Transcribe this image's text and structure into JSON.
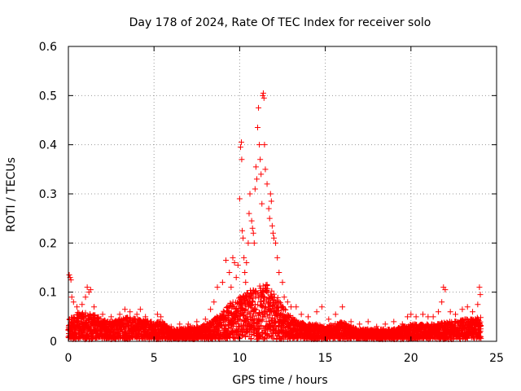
{
  "chart_data": {
    "type": "scatter",
    "title": "Day 178 of 2024, Rate Of TEC Index for receiver solo",
    "xlabel": "GPS time / hours",
    "ylabel": "ROTI / TECUs",
    "xlim": [
      0,
      25
    ],
    "ylim": [
      0,
      0.6
    ],
    "x_ticks": [
      0,
      5,
      10,
      15,
      20,
      25
    ],
    "y_ticks": [
      0,
      0.1,
      0.2,
      0.3,
      0.4,
      0.5,
      0.6
    ],
    "y_tick_labels": [
      "0",
      "0.1",
      "0.2",
      "0.3",
      "0.4",
      "0.5",
      "0.6"
    ],
    "grid": true,
    "marker": "+",
    "series": [
      {
        "name": "ROTI",
        "color": "#ff0000",
        "points": [
          [
            0.05,
            0.135
          ],
          [
            0.1,
            0.13
          ],
          [
            0.15,
            0.125
          ],
          [
            0.2,
            0.09
          ],
          [
            0.3,
            0.08
          ],
          [
            0.5,
            0.07
          ],
          [
            0.8,
            0.075
          ],
          [
            1.0,
            0.09
          ],
          [
            1.1,
            0.11
          ],
          [
            1.2,
            0.1
          ],
          [
            1.3,
            0.105
          ],
          [
            1.5,
            0.07
          ],
          [
            2.0,
            0.055
          ],
          [
            2.5,
            0.05
          ],
          [
            3.0,
            0.055
          ],
          [
            3.3,
            0.065
          ],
          [
            3.6,
            0.06
          ],
          [
            4.0,
            0.055
          ],
          [
            4.2,
            0.065
          ],
          [
            4.5,
            0.05
          ],
          [
            5.2,
            0.055
          ],
          [
            5.4,
            0.05
          ],
          [
            6.0,
            0.03
          ],
          [
            6.5,
            0.035
          ],
          [
            7.0,
            0.035
          ],
          [
            7.5,
            0.04
          ],
          [
            8.0,
            0.045
          ],
          [
            8.3,
            0.065
          ],
          [
            8.5,
            0.08
          ],
          [
            8.7,
            0.11
          ],
          [
            9.0,
            0.12
          ],
          [
            9.2,
            0.165
          ],
          [
            9.4,
            0.14
          ],
          [
            9.5,
            0.11
          ],
          [
            9.6,
            0.17
          ],
          [
            9.7,
            0.16
          ],
          [
            9.8,
            0.13
          ],
          [
            9.9,
            0.155
          ],
          [
            10.0,
            0.29
          ],
          [
            10.05,
            0.395
          ],
          [
            10.1,
            0.405
          ],
          [
            10.12,
            0.37
          ],
          [
            10.15,
            0.225
          ],
          [
            10.2,
            0.21
          ],
          [
            10.25,
            0.17
          ],
          [
            10.3,
            0.14
          ],
          [
            10.35,
            0.12
          ],
          [
            10.4,
            0.16
          ],
          [
            10.5,
            0.2
          ],
          [
            10.55,
            0.26
          ],
          [
            10.6,
            0.3
          ],
          [
            10.7,
            0.245
          ],
          [
            10.75,
            0.23
          ],
          [
            10.8,
            0.22
          ],
          [
            10.85,
            0.2
          ],
          [
            10.9,
            0.31
          ],
          [
            10.95,
            0.355
          ],
          [
            11.0,
            0.33
          ],
          [
            11.05,
            0.435
          ],
          [
            11.1,
            0.475
          ],
          [
            11.15,
            0.4
          ],
          [
            11.2,
            0.37
          ],
          [
            11.25,
            0.34
          ],
          [
            11.3,
            0.28
          ],
          [
            11.35,
            0.5
          ],
          [
            11.38,
            0.505
          ],
          [
            11.42,
            0.495
          ],
          [
            11.45,
            0.4
          ],
          [
            11.5,
            0.35
          ],
          [
            11.6,
            0.32
          ],
          [
            11.7,
            0.27
          ],
          [
            11.75,
            0.25
          ],
          [
            11.8,
            0.3
          ],
          [
            11.85,
            0.285
          ],
          [
            11.9,
            0.235
          ],
          [
            11.95,
            0.22
          ],
          [
            12.0,
            0.21
          ],
          [
            12.1,
            0.2
          ],
          [
            12.2,
            0.17
          ],
          [
            12.3,
            0.14
          ],
          [
            12.5,
            0.12
          ],
          [
            12.6,
            0.09
          ],
          [
            12.8,
            0.08
          ],
          [
            13.0,
            0.07
          ],
          [
            13.3,
            0.07
          ],
          [
            13.6,
            0.055
          ],
          [
            14.0,
            0.05
          ],
          [
            14.5,
            0.06
          ],
          [
            14.8,
            0.07
          ],
          [
            15.2,
            0.045
          ],
          [
            15.6,
            0.055
          ],
          [
            16.0,
            0.07
          ],
          [
            16.5,
            0.04
          ],
          [
            17.0,
            0.035
          ],
          [
            17.5,
            0.04
          ],
          [
            18.0,
            0.03
          ],
          [
            18.5,
            0.035
          ],
          [
            19.0,
            0.04
          ],
          [
            19.5,
            0.035
          ],
          [
            19.8,
            0.05
          ],
          [
            20.0,
            0.055
          ],
          [
            20.3,
            0.05
          ],
          [
            20.7,
            0.055
          ],
          [
            21.0,
            0.05
          ],
          [
            21.3,
            0.05
          ],
          [
            21.6,
            0.06
          ],
          [
            21.8,
            0.08
          ],
          [
            21.9,
            0.11
          ],
          [
            22.0,
            0.105
          ],
          [
            22.3,
            0.06
          ],
          [
            22.6,
            0.055
          ],
          [
            23.0,
            0.065
          ],
          [
            23.3,
            0.07
          ],
          [
            23.6,
            0.06
          ],
          [
            23.9,
            0.075
          ],
          [
            24.0,
            0.11
          ],
          [
            24.05,
            0.095
          ]
        ],
        "envelope": [
          [
            0,
            0.045
          ],
          [
            0.5,
            0.06
          ],
          [
            1.0,
            0.06
          ],
          [
            1.5,
            0.055
          ],
          [
            2,
            0.045
          ],
          [
            2.5,
            0.04
          ],
          [
            3,
            0.045
          ],
          [
            3.5,
            0.05
          ],
          [
            4,
            0.045
          ],
          [
            4.5,
            0.045
          ],
          [
            5,
            0.04
          ],
          [
            5.5,
            0.04
          ],
          [
            6,
            0.025
          ],
          [
            6.5,
            0.025
          ],
          [
            7,
            0.03
          ],
          [
            7.5,
            0.03
          ],
          [
            8,
            0.035
          ],
          [
            8.5,
            0.045
          ],
          [
            9,
            0.06
          ],
          [
            9.5,
            0.08
          ],
          [
            10,
            0.09
          ],
          [
            10.5,
            0.1
          ],
          [
            11,
            0.12
          ],
          [
            11.5,
            0.12
          ],
          [
            12,
            0.1
          ],
          [
            12.5,
            0.075
          ],
          [
            13,
            0.05
          ],
          [
            13.5,
            0.04
          ],
          [
            14,
            0.035
          ],
          [
            14.5,
            0.035
          ],
          [
            15,
            0.03
          ],
          [
            15.5,
            0.035
          ],
          [
            16,
            0.04
          ],
          [
            16.5,
            0.03
          ],
          [
            17,
            0.025
          ],
          [
            17.5,
            0.025
          ],
          [
            18,
            0.025
          ],
          [
            18.5,
            0.025
          ],
          [
            19,
            0.025
          ],
          [
            19.5,
            0.03
          ],
          [
            20,
            0.035
          ],
          [
            20.5,
            0.035
          ],
          [
            21,
            0.035
          ],
          [
            21.5,
            0.035
          ],
          [
            22,
            0.04
          ],
          [
            22.5,
            0.04
          ],
          [
            23,
            0.045
          ],
          [
            23.5,
            0.045
          ],
          [
            24,
            0.05
          ]
        ]
      }
    ]
  }
}
